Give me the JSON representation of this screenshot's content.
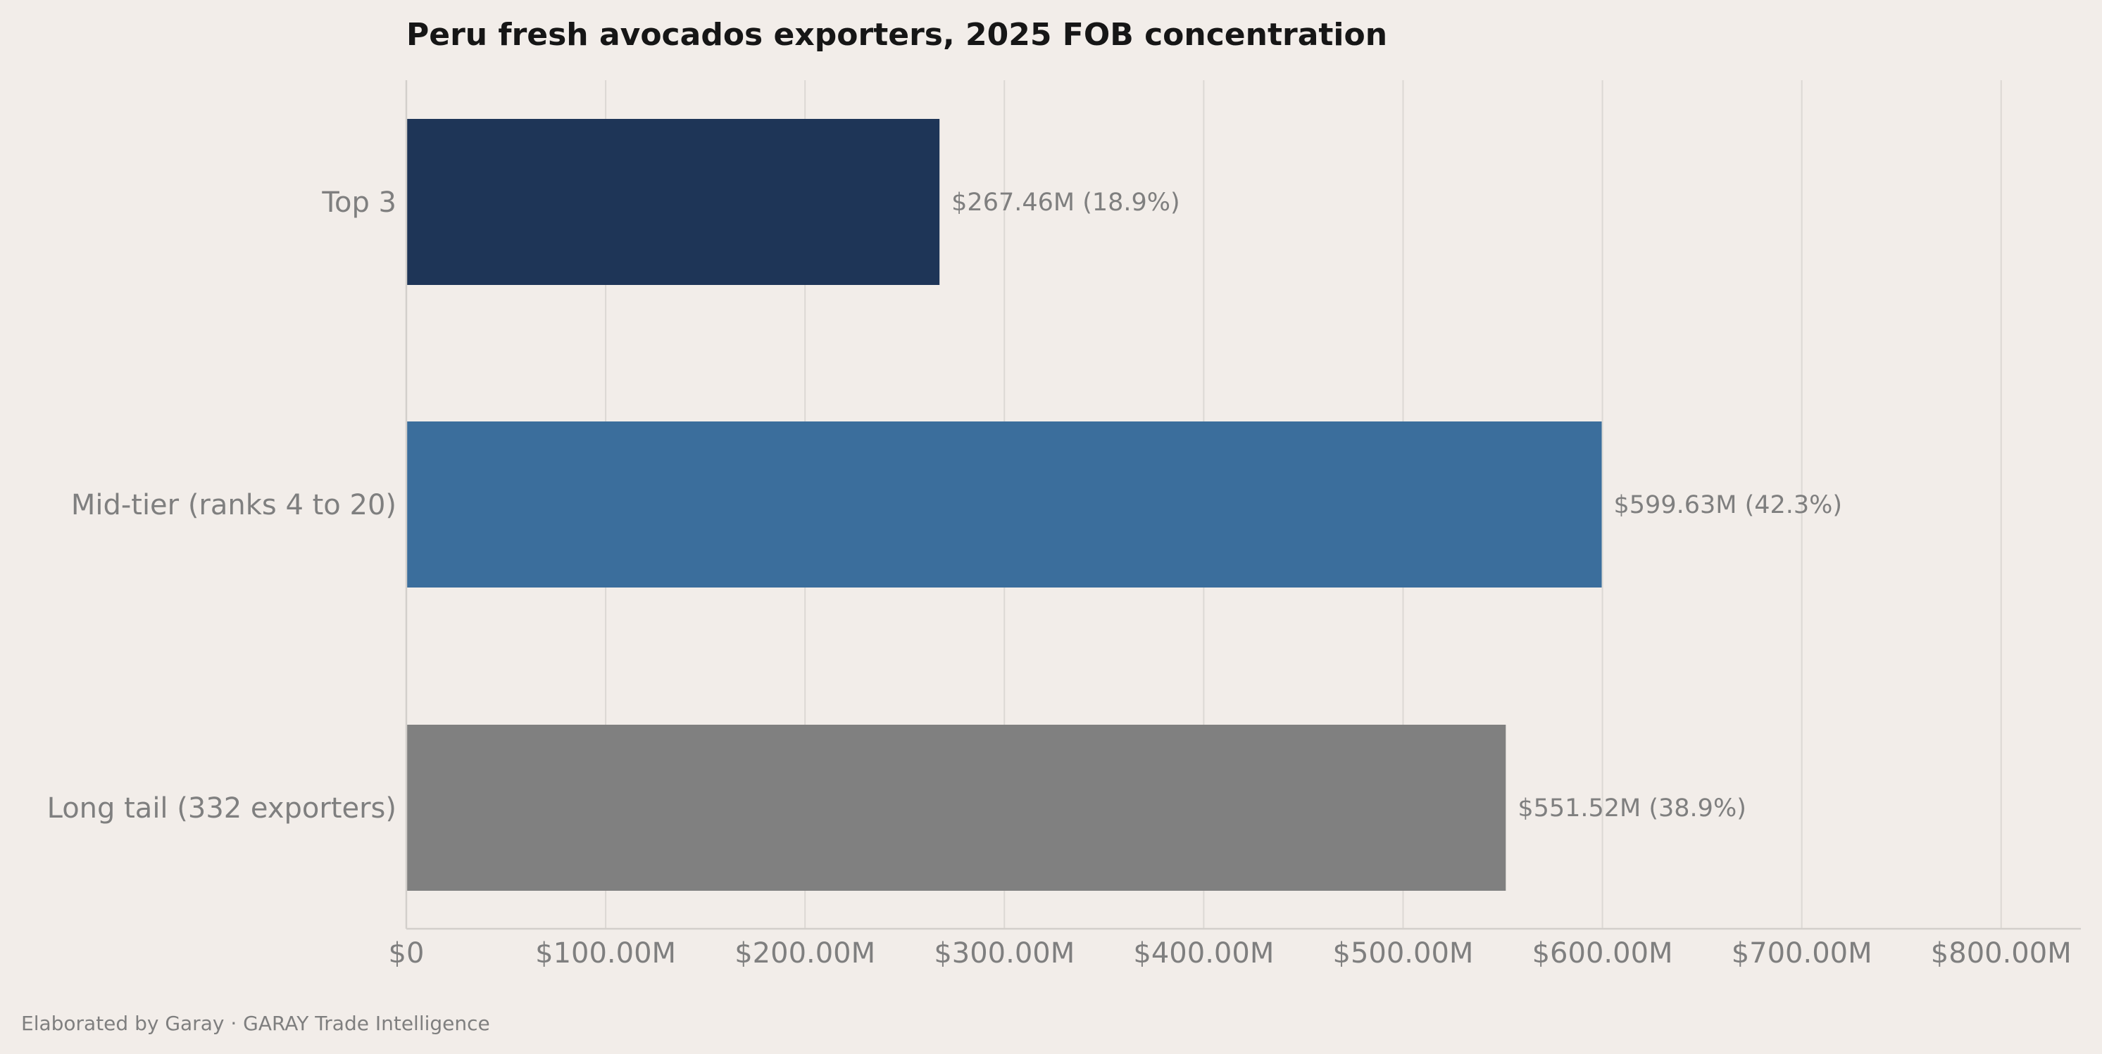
{
  "chart_data": {
    "type": "bar",
    "orientation": "horizontal",
    "title": "Peru fresh avocados exporters, 2025 FOB concentration",
    "xlabel": "",
    "ylabel": "",
    "categories": [
      "Top 3",
      "Mid-tier (ranks 4 to 20)",
      "Long tail (332 exporters)"
    ],
    "values": [
      267.46,
      599.63,
      551.52
    ],
    "value_labels": [
      "$267.46M  (18.9%)",
      "$599.63M  (42.3%)",
      "$551.52M  (38.9%)"
    ],
    "colors": [
      "#1e3557",
      "#3b6e9c",
      "#808080"
    ],
    "xlim": [
      0,
      840
    ],
    "xticks": [
      0,
      100,
      200,
      300,
      400,
      500,
      600,
      700,
      800
    ],
    "xtick_labels": [
      "$0",
      "$100.00M",
      "$200.00M",
      "$300.00M",
      "$400.00M",
      "$500.00M",
      "$600.00M",
      "$700.00M",
      "$800.00M"
    ],
    "grid": "x",
    "legend": "none"
  },
  "footer": {
    "text": "Elaborated by Garay  ·  GARAY Trade Intelligence"
  }
}
